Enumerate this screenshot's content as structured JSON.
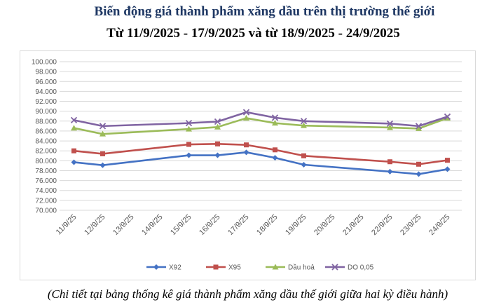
{
  "header": {
    "title": "Biến động giá thành phẩm xăng dầu trên thị trường thế giới",
    "subtitle": "Từ 11/9/2025 - 17/9/2025 và từ 18/9/2025 - 24/9/2025"
  },
  "footnote": "(Chi tiết tại bảng thống kê giá thành phẩm xăng dầu thế giới giữa hai kỳ điều hành)",
  "chart_data": {
    "type": "line",
    "categories": [
      "11/9/25",
      "12/9/25",
      "13/9/25",
      "14/9/25",
      "15/9/25",
      "16/9/25",
      "17/9/25",
      "18/9/25",
      "19/9/25",
      "20/9/25",
      "21/9/25",
      "22/9/25",
      "23/9/25",
      "24/9/25"
    ],
    "ylim": [
      70,
      100
    ],
    "ystep": 2,
    "ytick_labels": [
      "70.000",
      "72.000",
      "74.000",
      "76.000",
      "78.000",
      "80.000",
      "82.000",
      "84.000",
      "86.000",
      "88.000",
      "90.000",
      "92.000",
      "94.000",
      "96.000",
      "98.000",
      "100.000"
    ],
    "grid": true,
    "legend_position": "bottom",
    "series": [
      {
        "name": "X92",
        "color": "#4472c4",
        "marker": "diamond",
        "values": [
          79.7,
          79.1,
          null,
          null,
          81.1,
          81.1,
          81.7,
          80.6,
          79.2,
          null,
          null,
          77.8,
          77.3,
          78.3
        ]
      },
      {
        "name": "X95",
        "color": "#c0504d",
        "marker": "square",
        "values": [
          82.0,
          81.4,
          null,
          null,
          83.3,
          83.4,
          83.2,
          82.2,
          81.0,
          null,
          null,
          79.8,
          79.3,
          80.1
        ]
      },
      {
        "name": "Dầu hoả",
        "color": "#9bbb59",
        "marker": "triangle",
        "values": [
          86.6,
          85.4,
          null,
          null,
          86.4,
          86.8,
          88.6,
          87.6,
          87.1,
          null,
          null,
          86.7,
          86.5,
          88.6
        ]
      },
      {
        "name": "DO 0,05",
        "color": "#8064a2",
        "marker": "x",
        "values": [
          88.2,
          87.0,
          null,
          null,
          87.6,
          87.9,
          89.8,
          88.7,
          88.0,
          null,
          null,
          87.5,
          87.0,
          88.9
        ]
      }
    ]
  }
}
